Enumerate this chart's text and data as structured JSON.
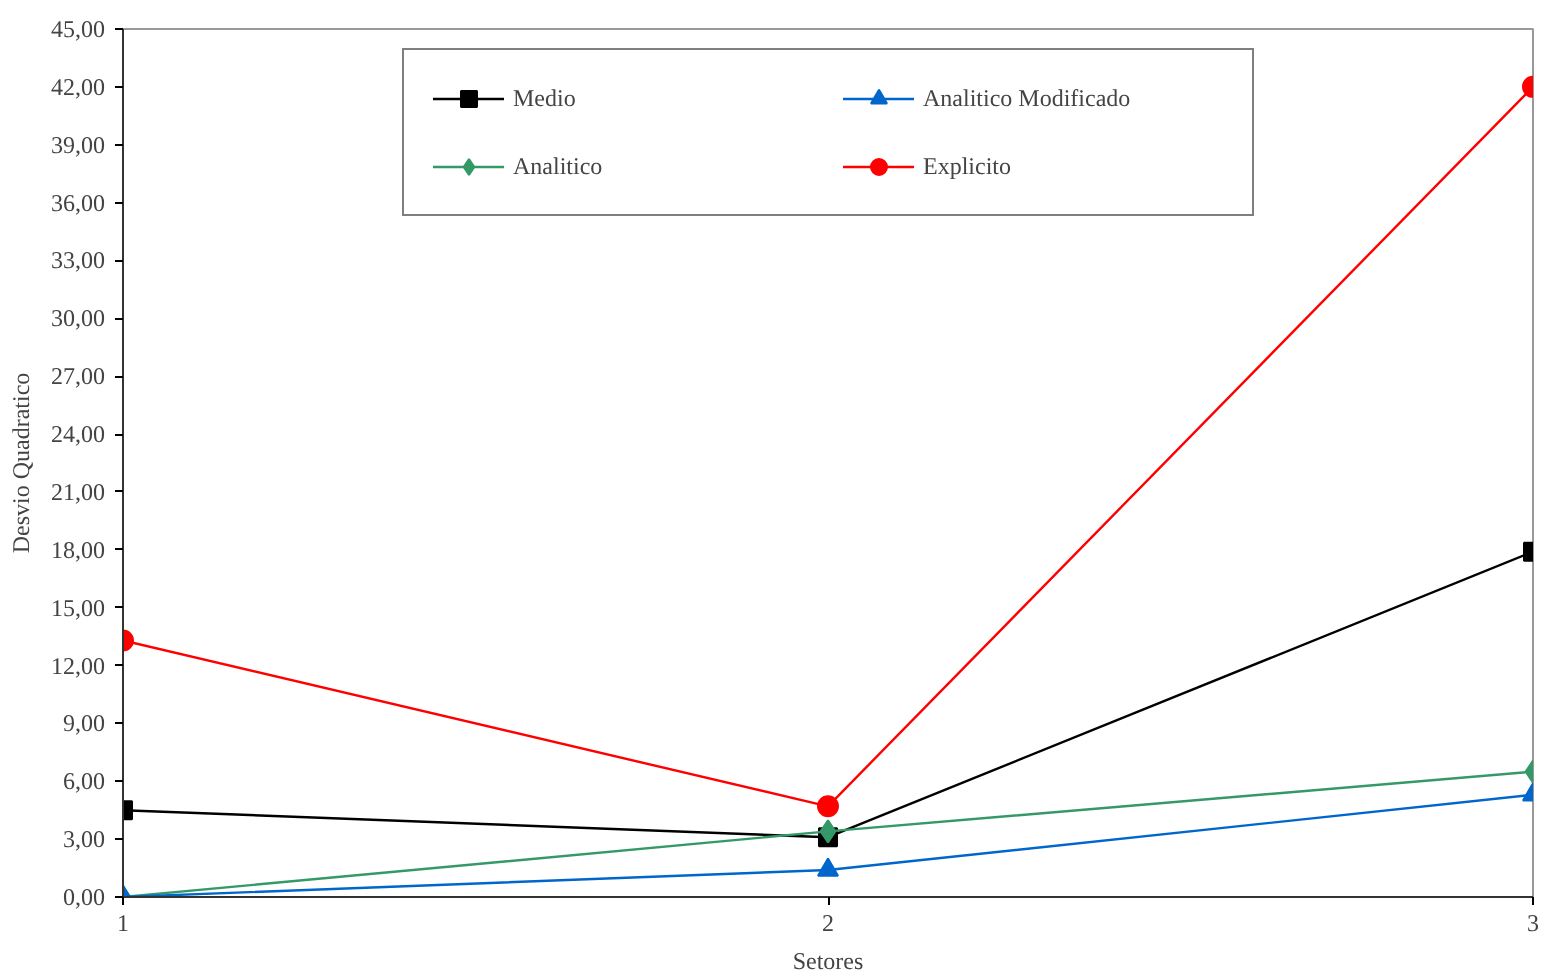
{
  "chart_data": {
    "type": "line",
    "xlabel": "Setores",
    "ylabel": "Desvio Quadratico",
    "x": [
      1,
      2,
      3
    ],
    "xlim": [
      1,
      3
    ],
    "xticks": [
      1,
      2,
      3
    ],
    "ylim": [
      0,
      45
    ],
    "yticks": [
      {
        "value": 0,
        "label": "0,00"
      },
      {
        "value": 3,
        "label": "3,00"
      },
      {
        "value": 6,
        "label": "6,00"
      },
      {
        "value": 9,
        "label": "9,00"
      },
      {
        "value": 12,
        "label": "12,00"
      },
      {
        "value": 15,
        "label": "15,00"
      },
      {
        "value": 18,
        "label": "18,00"
      },
      {
        "value": 21,
        "label": "21,00"
      },
      {
        "value": 24,
        "label": "24,00"
      },
      {
        "value": 27,
        "label": "27,00"
      },
      {
        "value": 30,
        "label": "30,00"
      },
      {
        "value": 33,
        "label": "33,00"
      },
      {
        "value": 36,
        "label": "36,00"
      },
      {
        "value": 39,
        "label": "39,00"
      },
      {
        "value": 42,
        "label": "42,00"
      },
      {
        "value": 45,
        "label": "45,00"
      }
    ],
    "grid": false,
    "legend": "top",
    "series": [
      {
        "name": "Medio",
        "color": "#000000",
        "marker": "square",
        "values": [
          4.5,
          3.1,
          17.9
        ]
      },
      {
        "name": "Analitico",
        "color": "#339966",
        "marker": "diamond",
        "values": [
          0,
          3.4,
          6.5
        ]
      },
      {
        "name": "Analitico Modificado",
        "color": "#0066cc",
        "marker": "triangle",
        "values": [
          0,
          1.4,
          5.3
        ]
      },
      {
        "name": "Explicito",
        "color": "#ff0000",
        "marker": "circle",
        "values": [
          13.3,
          4.7,
          42
        ]
      }
    ]
  }
}
